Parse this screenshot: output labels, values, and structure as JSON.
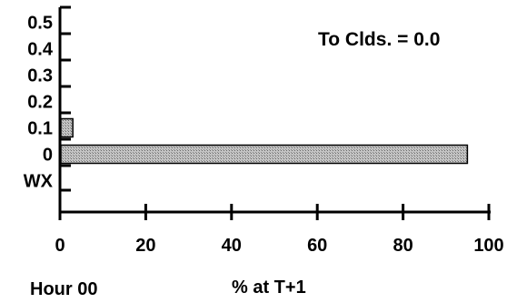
{
  "chart_data": {
    "type": "bar",
    "orientation": "horizontal",
    "categories": [
      "0.5",
      "0.4",
      "0.3",
      "0.2",
      "0.1",
      "0",
      "WX"
    ],
    "values": [
      0,
      0,
      0,
      0,
      3,
      95,
      0
    ],
    "xlim": [
      0,
      100
    ],
    "xticks": [
      "0",
      "20",
      "40",
      "60",
      "80",
      "100"
    ],
    "xlabel": "% at T+1",
    "corner_label": "Hour 00",
    "annotation": "To Clds. = 0.0",
    "grid": false,
    "colors": {
      "bar_fill": "#b8b8b8",
      "bar_edge": "#000000",
      "axis": "#000000"
    }
  }
}
